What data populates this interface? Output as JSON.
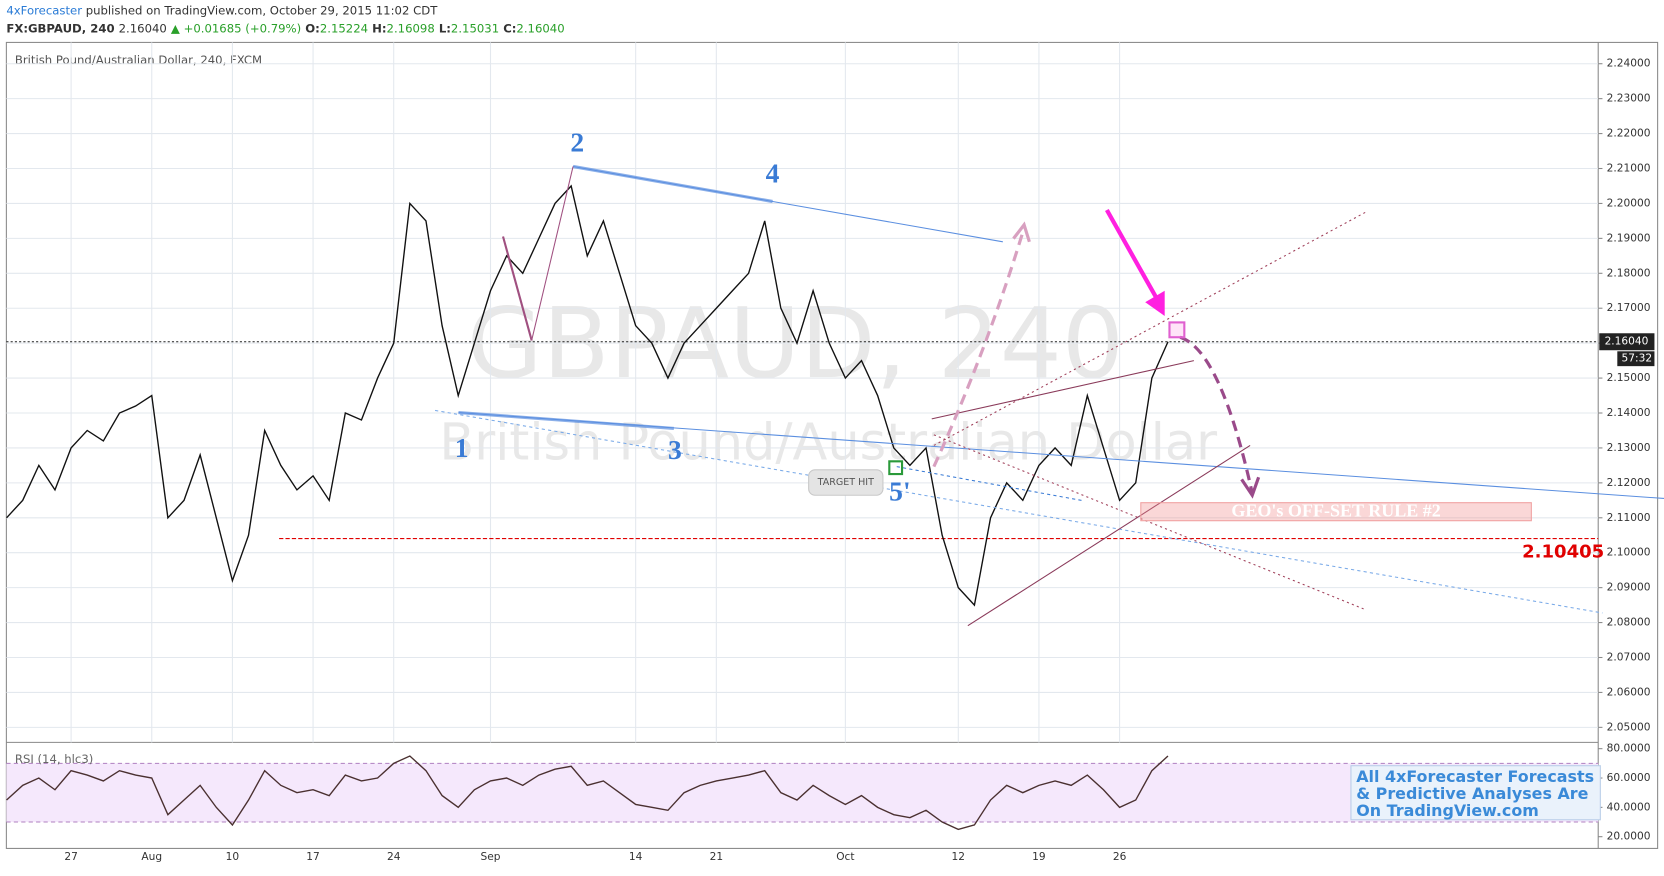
{
  "header": {
    "author": "4xForecaster",
    "published": "published on TradingView.com, October 29, 2015 11:02 CDT",
    "symbol": "FX:GBPAUD, 240",
    "last": "2.16040",
    "change": "▲ +0.01685 (+0.79%)",
    "o_label": "O:",
    "o": "2.15224",
    "h_label": "H:",
    "h": "2.16098",
    "l_label": "L:",
    "l": "2.15031",
    "c_label": "C:",
    "c": "2.16040"
  },
  "chart_data": {
    "type": "line",
    "title": "British Pound/Australian Dollar, 240, FXCM",
    "watermark": "GBPAUD, 240",
    "watermark_sub": "British Pound/Australian Dollar",
    "categories": [
      null,
      null,
      null,
      null,
      "27",
      null,
      null,
      null,
      null,
      "Aug",
      null,
      null,
      null,
      null,
      "10",
      null,
      null,
      null,
      null,
      "17",
      null,
      null,
      null,
      null,
      "24",
      null,
      null,
      null,
      null,
      null,
      "Sep",
      null,
      null,
      null,
      null,
      null,
      null,
      null,
      null,
      "14",
      null,
      null,
      null,
      null,
      "21",
      null,
      null,
      null,
      null,
      null,
      null,
      null,
      "Oct",
      null,
      null,
      null,
      null,
      null,
      null,
      "12",
      null,
      null,
      null,
      null,
      "19",
      null,
      null,
      null,
      null,
      "26",
      null,
      null,
      null
    ],
    "series": [
      {
        "name": "GBPAUD",
        "color": "#111111",
        "values": [
          2.11,
          2.115,
          2.125,
          2.118,
          2.13,
          2.135,
          2.132,
          2.14,
          2.142,
          2.145,
          2.11,
          2.115,
          2.128,
          2.11,
          2.092,
          2.105,
          2.135,
          2.125,
          2.118,
          2.122,
          2.115,
          2.14,
          2.138,
          2.15,
          2.16,
          2.2,
          2.195,
          2.165,
          2.145,
          2.16,
          2.175,
          2.185,
          2.18,
          2.19,
          2.2,
          2.205,
          2.185,
          2.195,
          2.18,
          2.165,
          2.16,
          2.15,
          2.16,
          2.165,
          2.17,
          2.175,
          2.18,
          2.195,
          2.17,
          2.16,
          2.175,
          2.16,
          2.15,
          2.155,
          2.145,
          2.13,
          2.125,
          2.13,
          2.105,
          2.09,
          2.085,
          2.11,
          2.12,
          2.115,
          2.125,
          2.13,
          2.125,
          2.145,
          2.13,
          2.115,
          2.12,
          2.15,
          2.1604
        ]
      }
    ],
    "ylim": [
      2.0457,
      2.2461
    ],
    "yticks": [
      {
        "value": 2.05,
        "label": "2.05000"
      },
      {
        "value": 2.06,
        "label": "2.06000"
      },
      {
        "value": 2.07,
        "label": "2.07000"
      },
      {
        "value": 2.08,
        "label": "2.08000"
      },
      {
        "value": 2.09,
        "label": "2.09000"
      },
      {
        "value": 2.1,
        "label": "2.10000"
      },
      {
        "value": 2.11,
        "label": "2.11000"
      },
      {
        "value": 2.12,
        "label": "2.12000"
      },
      {
        "value": 2.13,
        "label": "2.13000"
      },
      {
        "value": 2.14,
        "label": "2.14000"
      },
      {
        "value": 2.15,
        "label": "2.15000"
      },
      {
        "value": 2.16,
        "label": "2.16000"
      },
      {
        "value": 2.17,
        "label": "2.17000"
      },
      {
        "value": 2.18,
        "label": "2.18000"
      },
      {
        "value": 2.19,
        "label": "2.19000"
      },
      {
        "value": 2.2,
        "label": "2.20000"
      },
      {
        "value": 2.21,
        "label": "2.21000"
      },
      {
        "value": 2.22,
        "label": "2.22000"
      },
      {
        "value": 2.23,
        "label": "2.23000"
      },
      {
        "value": 2.24,
        "label": "2.24000"
      }
    ],
    "grid": true,
    "last_price": {
      "value": 2.1604,
      "label": "2.16040"
    },
    "countdown": "57:32",
    "level": {
      "value": 2.10405,
      "label": "2.10405",
      "color": "#e00000"
    },
    "wave_labels": [
      "1",
      "2",
      "3",
      "4",
      "5'"
    ],
    "target_note": "TARGET HIT",
    "rule_note": "GEO's OFF-SET RULE #2",
    "rsi": {
      "title": "RSI (14, hlc3)",
      "color": "#4a3030",
      "values": [
        45,
        55,
        60,
        52,
        65,
        62,
        58,
        65,
        62,
        60,
        35,
        45,
        55,
        40,
        28,
        45,
        65,
        55,
        50,
        52,
        48,
        62,
        58,
        60,
        70,
        75,
        65,
        48,
        40,
        52,
        58,
        60,
        55,
        62,
        66,
        68,
        55,
        58,
        50,
        42,
        40,
        38,
        50,
        55,
        58,
        60,
        62,
        65,
        50,
        45,
        55,
        48,
        42,
        48,
        40,
        35,
        33,
        38,
        30,
        25,
        28,
        45,
        55,
        50,
        55,
        58,
        55,
        62,
        52,
        40,
        45,
        65,
        75
      ],
      "ylim": [
        12,
        84.3
      ],
      "yticks": [
        {
          "value": 20,
          "label": "20.0000"
        },
        {
          "value": 40,
          "label": "40.0000"
        },
        {
          "value": 60,
          "label": "60.0000"
        },
        {
          "value": 80,
          "label": "80.0000"
        }
      ],
      "bands": [
        30,
        70
      ]
    },
    "promo": [
      "All 4xForecaster Forecasts",
      "& Predictive Analyses Are",
      "On TradingView.com"
    ]
  }
}
